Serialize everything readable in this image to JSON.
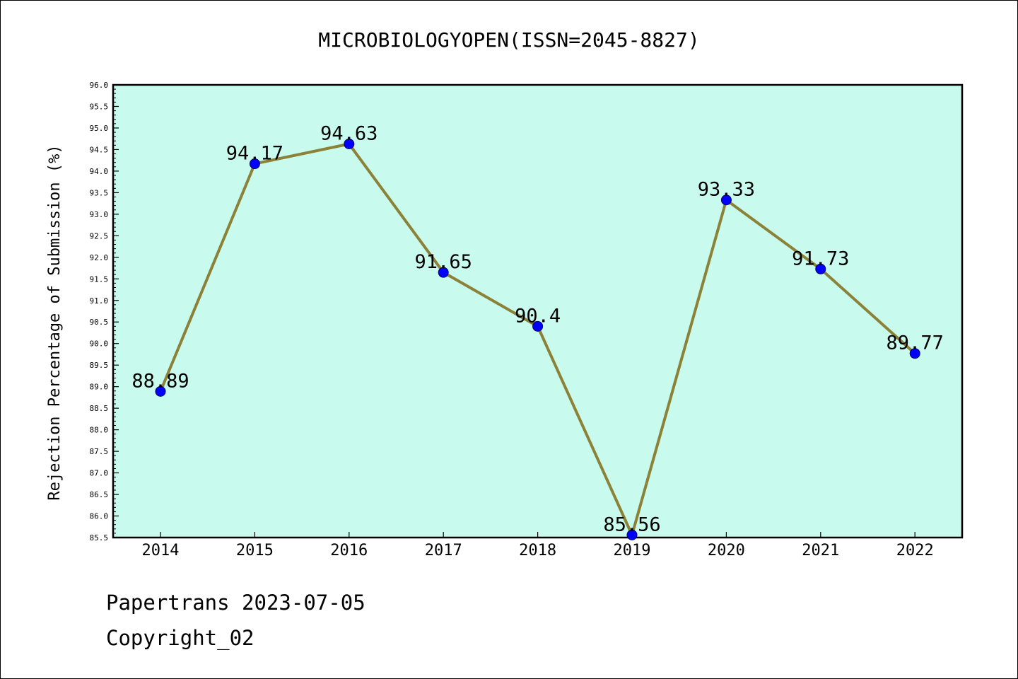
{
  "chart_data": {
    "type": "line",
    "title": "MICROBIOLOGYOPEN(ISSN=2045-8827)",
    "xlabel": "",
    "ylabel": "Rejection Percentage of Submission (%)",
    "categories": [
      "2014",
      "2015",
      "2016",
      "2017",
      "2018",
      "2019",
      "2020",
      "2021",
      "2022"
    ],
    "values": [
      88.89,
      94.17,
      94.63,
      91.65,
      90.4,
      85.56,
      93.33,
      91.73,
      89.77
    ],
    "value_labels": [
      "88.89",
      "94.17",
      "94.63",
      "91.65",
      "90.4",
      "85.56",
      "93.33",
      "91.73",
      "89.77"
    ],
    "ylim": [
      85.5,
      96.0
    ],
    "yticks": [
      "85.5",
      "86.0",
      "86.5",
      "87.0",
      "87.5",
      "88.0",
      "88.5",
      "89.0",
      "89.5",
      "90.0",
      "90.5",
      "91.0",
      "91.5",
      "92.0",
      "92.5",
      "93.0",
      "93.5",
      "94.0",
      "94.5",
      "95.0",
      "95.5",
      "96.0"
    ],
    "grid": false,
    "plot_background": "#c8faee",
    "line_color": "#8b8238",
    "marker_color": "#0000ff"
  },
  "footer": {
    "line1": "Papertrans 2023-07-05",
    "line2": "Copyright_02"
  }
}
